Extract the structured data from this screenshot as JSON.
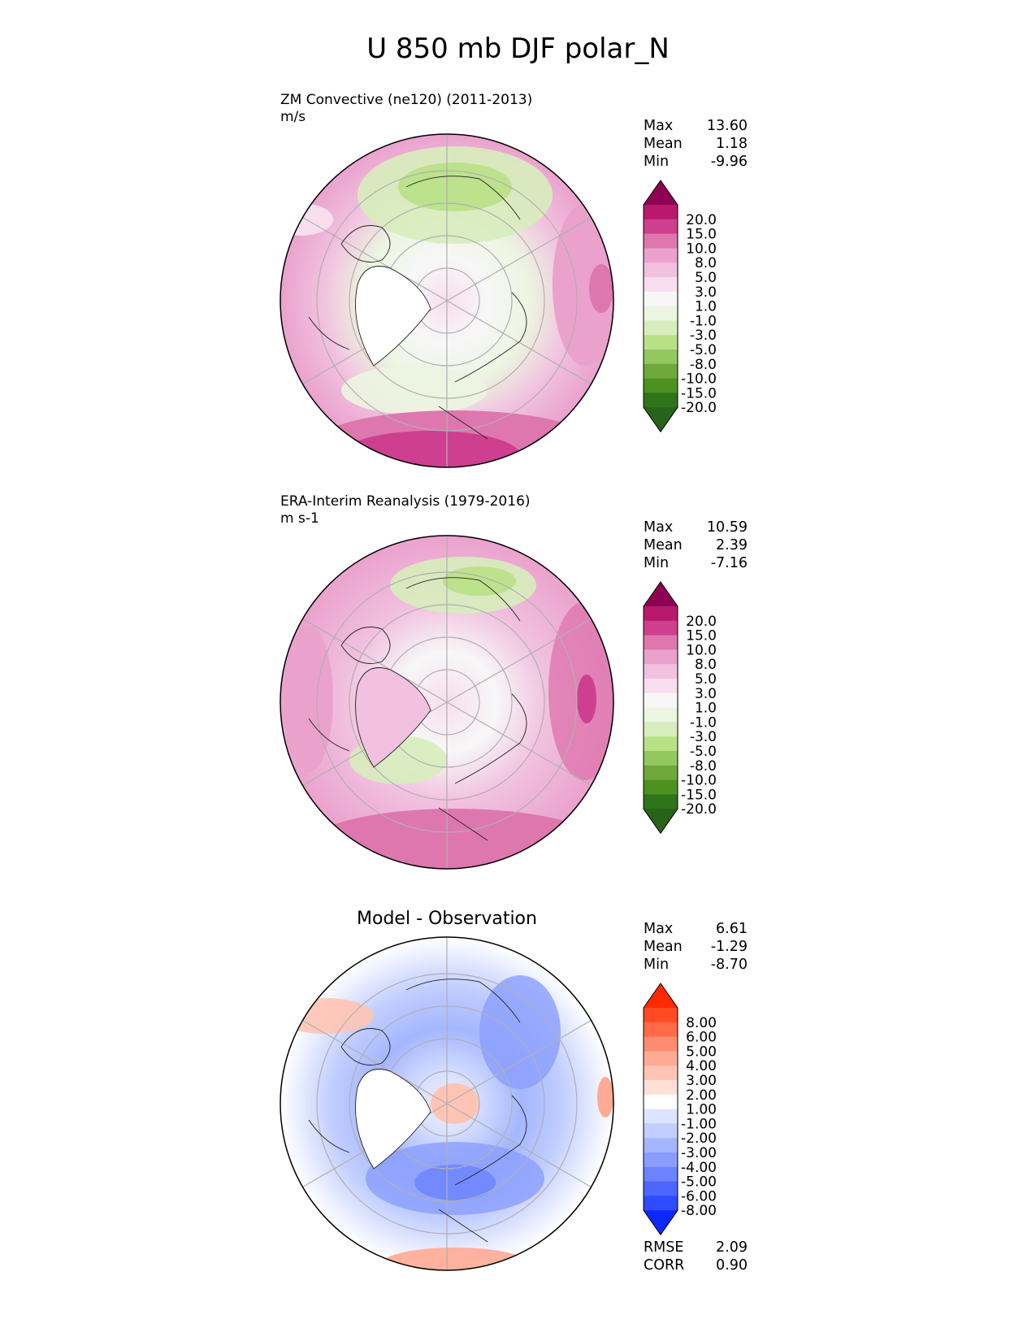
{
  "title": "U 850 mb DJF polar_N",
  "panels": [
    {
      "id": "test",
      "name": "ZM Convective (ne120) (2011-2013)",
      "units": "m/s",
      "stats": [
        {
          "label": "Max",
          "value": "13.60"
        },
        {
          "label": "Mean",
          "value": "1.18"
        },
        {
          "label": "Min",
          "value": "-9.96"
        }
      ],
      "colorbar": {
        "tick_labels": [
          "20.0",
          "15.0",
          "10.0",
          "8.0",
          "5.0",
          "3.0",
          "1.0",
          "-1.0",
          "-3.0",
          "-5.0",
          "-8.0",
          "-10.0",
          "-15.0",
          "-20.0"
        ],
        "colors_top_to_bottom": [
          "#8e0152",
          "#b8196d",
          "#cf3f8f",
          "#de77ae",
          "#eaa2cd",
          "#f1c1df",
          "#f8deee",
          "#f7f7f7",
          "#ecf5e1",
          "#d7edbd",
          "#b8e186",
          "#91c95f",
          "#6ea83b",
          "#4d9221",
          "#2f731b",
          "#276419"
        ]
      }
    },
    {
      "id": "reference",
      "name": "ERA-Interim Reanalysis (1979-2016)",
      "units": "m s-1",
      "stats": [
        {
          "label": "Max",
          "value": "10.59"
        },
        {
          "label": "Mean",
          "value": "2.39"
        },
        {
          "label": "Min",
          "value": "-7.16"
        }
      ],
      "colorbar": {
        "tick_labels": [
          "20.0",
          "15.0",
          "10.0",
          "8.0",
          "5.0",
          "3.0",
          "1.0",
          "-1.0",
          "-3.0",
          "-5.0",
          "-8.0",
          "-10.0",
          "-15.0",
          "-20.0"
        ],
        "colors_top_to_bottom": [
          "#8e0152",
          "#b8196d",
          "#cf3f8f",
          "#de77ae",
          "#eaa2cd",
          "#f1c1df",
          "#f8deee",
          "#f7f7f7",
          "#ecf5e1",
          "#d7edbd",
          "#b8e186",
          "#91c95f",
          "#6ea83b",
          "#4d9221",
          "#2f731b",
          "#276419"
        ]
      }
    },
    {
      "id": "diff",
      "name": "Model - Observation",
      "stats": [
        {
          "label": "Max",
          "value": "6.61"
        },
        {
          "label": "Mean",
          "value": "-1.29"
        },
        {
          "label": "Min",
          "value": "-8.70"
        }
      ],
      "extra_stats": [
        {
          "label": "RMSE",
          "value": "2.09"
        },
        {
          "label": "CORR",
          "value": "0.90"
        }
      ],
      "colorbar": {
        "tick_labels": [
          "8.00",
          "6.00",
          "5.00",
          "4.00",
          "3.00",
          "2.00",
          "1.00",
          "-1.00",
          "-2.00",
          "-3.00",
          "-4.00",
          "-5.00",
          "-6.00",
          "-8.00"
        ],
        "colors_top_to_bottom": [
          "#ff2a00",
          "#ff4a22",
          "#ff6a48",
          "#ff8c70",
          "#ffaa94",
          "#ffc4b4",
          "#ffe0d6",
          "#ffffff",
          "#dce4ff",
          "#c2ceff",
          "#a4b6ff",
          "#8a9dff",
          "#6c82ff",
          "#4c66ff",
          "#2e4bff",
          "#0a28ff"
        ]
      }
    }
  ],
  "chart_data": [
    {
      "type": "heatmap",
      "title": "ZM Convective (ne120) (2011-2013)",
      "units": "m/s",
      "projection": "north polar stereographic",
      "stats": {
        "Max": 13.6,
        "Mean": 1.18,
        "Min": -9.96
      },
      "colorbar_levels": [
        -20,
        -15,
        -10,
        -8,
        -5,
        -3,
        -1,
        1,
        3,
        5,
        8,
        10,
        15,
        20
      ]
    },
    {
      "type": "heatmap",
      "title": "ERA-Interim Reanalysis (1979-2016)",
      "units": "m s-1",
      "projection": "north polar stereographic",
      "stats": {
        "Max": 10.59,
        "Mean": 2.39,
        "Min": -7.16
      },
      "colorbar_levels": [
        -20,
        -15,
        -10,
        -8,
        -5,
        -3,
        -1,
        1,
        3,
        5,
        8,
        10,
        15,
        20
      ]
    },
    {
      "type": "heatmap",
      "title": "Model - Observation",
      "projection": "north polar stereographic",
      "stats": {
        "Max": 6.61,
        "Mean": -1.29,
        "Min": -8.7,
        "RMSE": 2.09,
        "CORR": 0.9
      },
      "colorbar_levels": [
        -8,
        -6,
        -5,
        -4,
        -3,
        -2,
        -1,
        1,
        2,
        3,
        4,
        5,
        6,
        8
      ]
    }
  ]
}
